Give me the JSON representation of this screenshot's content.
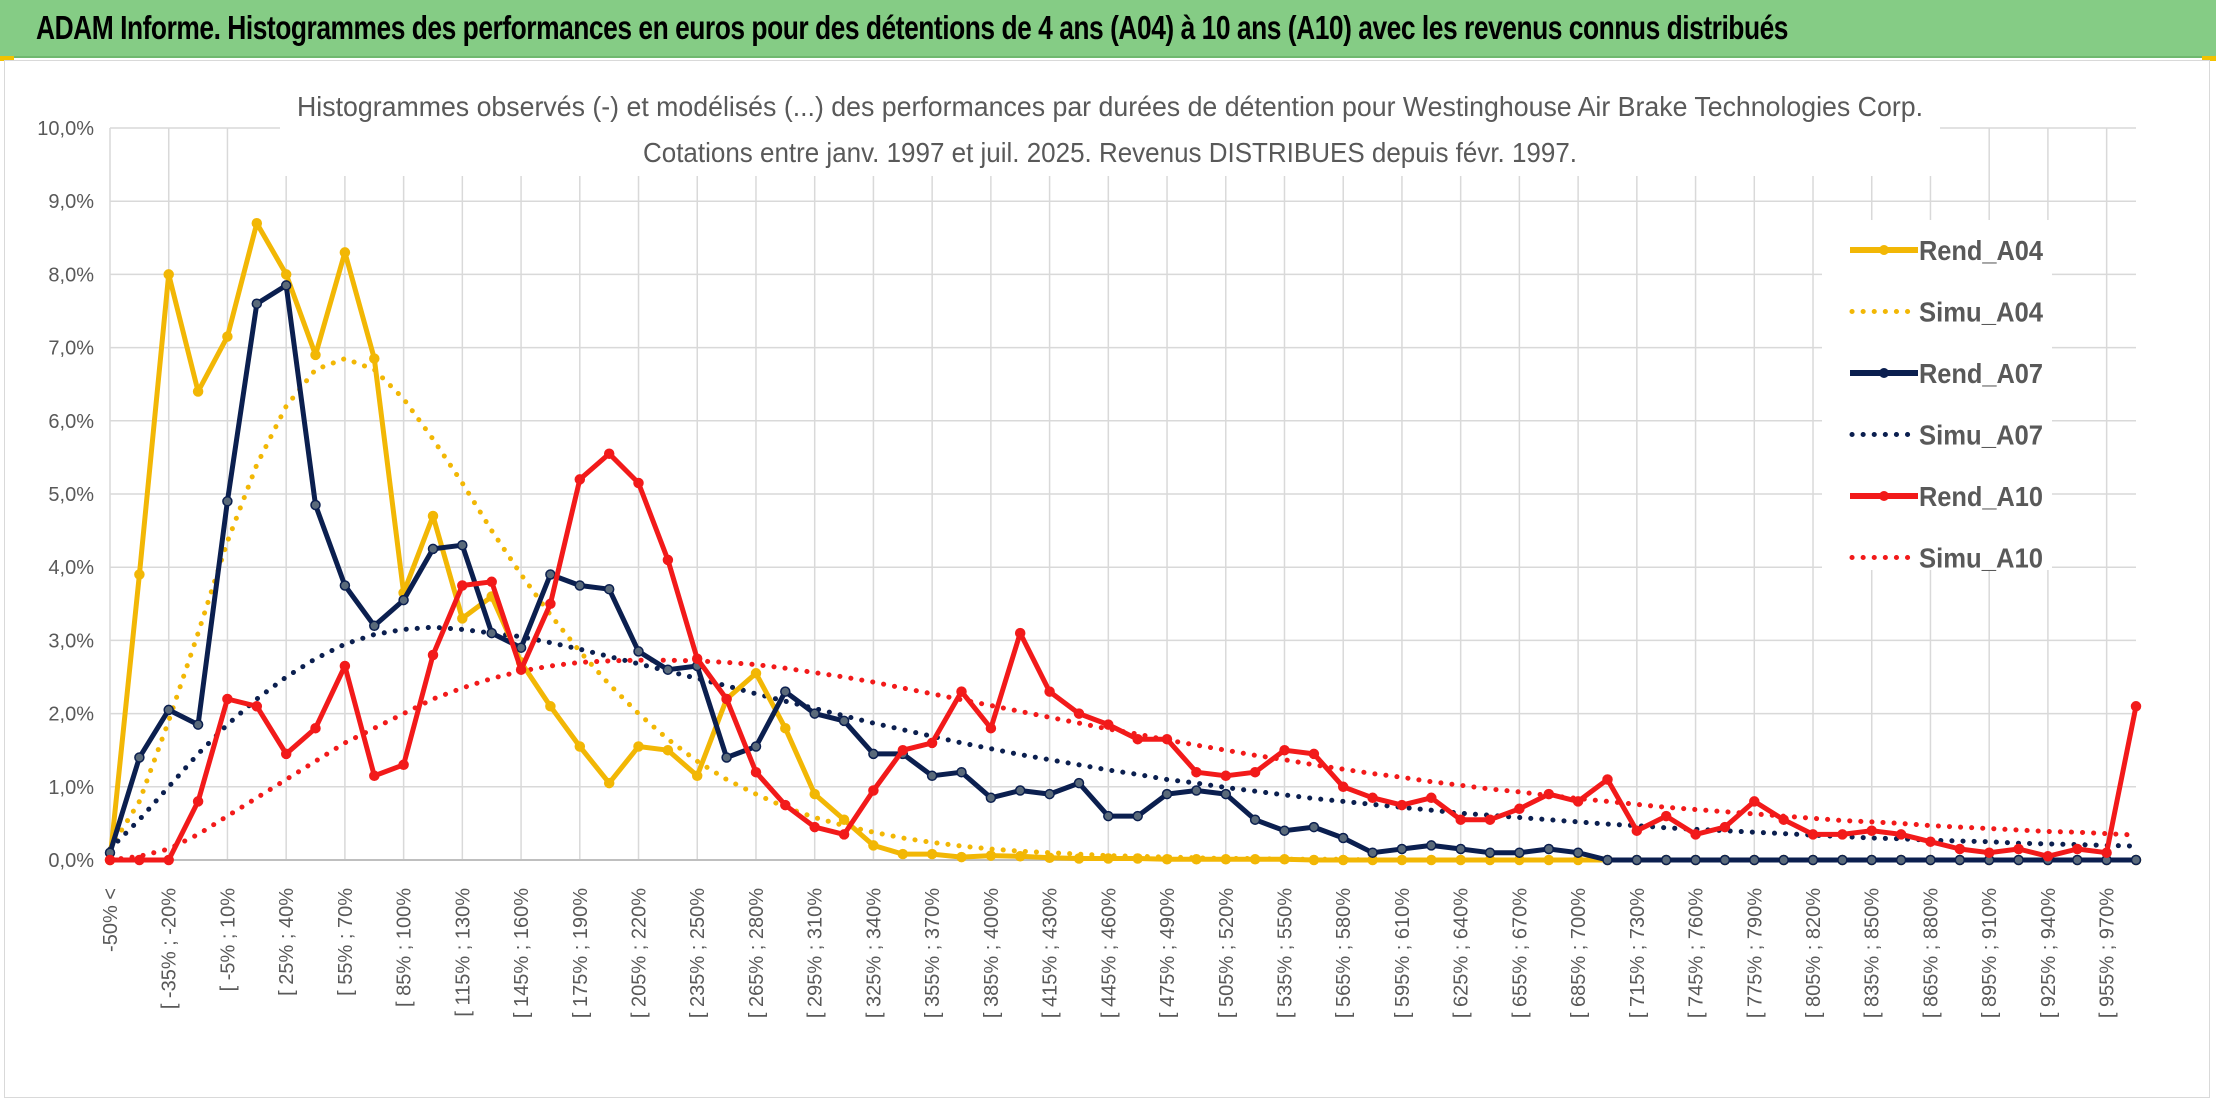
{
  "header": {
    "title": "ADAM Informe. Histogrammes des performances en euros pour des détentions de 4 ans (A04) à 10 ans (A10) avec les revenus connus distribués"
  },
  "colors": {
    "header_band": "#85cc85",
    "a04": "#f2b705",
    "a07": "#0b1f4f",
    "a10": "#f21a1a",
    "grid": "#d9d9d9",
    "text": "#595959"
  },
  "chart_data": {
    "type": "line",
    "title": "Histogrammes observés (-) et modélisés (...) des performances par durées de détention pour Westinghouse Air Brake Technologies Corp.",
    "subtitle": "Cotations entre janv. 1997 et juil. 2025. Revenus DISTRIBUES depuis févr. 1997.",
    "ylim": [
      0,
      10
    ],
    "y_tick_labels": [
      "0,0%",
      "1,0%",
      "2,0%",
      "3,0%",
      "4,0%",
      "5,0%",
      "6,0%",
      "7,0%",
      "8,0%",
      "9,0%",
      "10,0%"
    ],
    "x_tick_labels": [
      "-50% <",
      "[ -35% ; -20%",
      "[ -5% ; 10%",
      "[ 25% ; 40%",
      "[ 55% ; 70%",
      "[ 85% ; 100%",
      "[ 115% ; 130%",
      "[ 145% ; 160%",
      "[ 175% ; 190%",
      "[ 205% ; 220%",
      "[ 235% ; 250%",
      "[ 265% ; 280%",
      "[ 295% ; 310%",
      "[ 325% ; 340%",
      "[ 355% ; 370%",
      "[ 385% ; 400%",
      "[ 415% ; 430%",
      "[ 445% ; 460%",
      "[ 475% ; 490%",
      "[ 505% ; 520%",
      "[ 535% ; 550%",
      "[ 565% ; 580%",
      "[ 595% ; 610%",
      "[ 625% ; 640%",
      "[ 655% ; 670%",
      "[ 685% ; 700%",
      "[ 715% ; 730%",
      "[ 745% ; 760%",
      "[ 775% ; 790%",
      "[ 805% ; 820%",
      "[ 835% ; 850%",
      "[ 865% ; 880%",
      "[ 895% ; 910%",
      "[ 925% ; 940%",
      "[ 955% ; 970%"
    ],
    "grid": true,
    "legend_position": "right",
    "series": [
      {
        "name": "Rend_A04",
        "style": "solid",
        "color": "#f2b705",
        "values": [
          0.0,
          3.9,
          8.0,
          6.4,
          7.15,
          8.7,
          8.0,
          6.9,
          8.3,
          6.85,
          3.65,
          4.7,
          3.3,
          3.6,
          2.7,
          2.1,
          1.55,
          1.05,
          1.55,
          1.5,
          1.15,
          2.2,
          2.55,
          1.8,
          0.9,
          0.55,
          0.2,
          0.08,
          0.08,
          0.04,
          0.06,
          0.05,
          0.03,
          0.02,
          0.02,
          0.02,
          0.01,
          0.01,
          0.01,
          0.01,
          0.01,
          0.0,
          0.0,
          0.0,
          0.0,
          0.0,
          0.0,
          0.0,
          0.0,
          0.0,
          0.0,
          0.0,
          0.0,
          0.0,
          0.0,
          0.0,
          0.0,
          0.0,
          0.0,
          0.0,
          0.0,
          0.0,
          0.0,
          0.0,
          0.0,
          0.0,
          0.0,
          0.0,
          0.0,
          0.0
        ]
      },
      {
        "name": "Simu_A04",
        "style": "dotted",
        "color": "#f2b705",
        "values": [
          0.15,
          0.8,
          1.9,
          3.1,
          4.35,
          5.4,
          6.2,
          6.7,
          6.85,
          6.7,
          6.3,
          5.75,
          5.15,
          4.5,
          3.9,
          3.35,
          2.85,
          2.4,
          2.0,
          1.65,
          1.35,
          1.1,
          0.9,
          0.72,
          0.58,
          0.47,
          0.38,
          0.3,
          0.24,
          0.19,
          0.15,
          0.12,
          0.1,
          0.08,
          0.06,
          0.05,
          0.04,
          0.03,
          0.02,
          0.02,
          0.01,
          0.01,
          0.01,
          0.0,
          0.0,
          0.0,
          0.0,
          0.0,
          0.0,
          0.0,
          0.0,
          0.0,
          0.0,
          0.0,
          0.0,
          0.0,
          0.0,
          0.0,
          0.0,
          0.0,
          0.0,
          0.0,
          0.0,
          0.0,
          0.0,
          0.0,
          0.0,
          0.0,
          0.0,
          0.0
        ]
      },
      {
        "name": "Rend_A07",
        "style": "solid",
        "color": "#0b1f4f",
        "values": [
          0.1,
          1.4,
          2.05,
          1.85,
          4.9,
          7.6,
          7.85,
          4.85,
          3.75,
          3.2,
          3.55,
          4.25,
          4.3,
          3.1,
          2.9,
          3.9,
          3.75,
          3.7,
          2.85,
          2.6,
          2.65,
          1.4,
          1.55,
          2.3,
          2.0,
          1.9,
          1.45,
          1.45,
          1.15,
          1.2,
          0.85,
          0.95,
          0.9,
          1.05,
          0.6,
          0.6,
          0.9,
          0.95,
          0.9,
          0.55,
          0.4,
          0.45,
          0.3,
          0.1,
          0.15,
          0.2,
          0.15,
          0.1,
          0.1,
          0.15,
          0.1,
          0.0,
          0.0,
          0.0,
          0.0,
          0.0,
          0.0,
          0.0,
          0.0,
          0.0,
          0.0,
          0.0,
          0.0,
          0.0,
          0.0,
          0.0,
          0.0,
          0.0,
          0.0,
          0.0
        ]
      },
      {
        "name": "Simu_A07",
        "style": "dotted",
        "color": "#0b1f4f",
        "values": [
          0.15,
          0.55,
          1.0,
          1.45,
          1.85,
          2.2,
          2.5,
          2.75,
          2.95,
          3.08,
          3.15,
          3.18,
          3.15,
          3.1,
          3.05,
          2.97,
          2.88,
          2.78,
          2.68,
          2.58,
          2.48,
          2.38,
          2.27,
          2.17,
          2.07,
          1.97,
          1.87,
          1.78,
          1.69,
          1.6,
          1.52,
          1.44,
          1.37,
          1.3,
          1.23,
          1.17,
          1.1,
          1.05,
          0.99,
          0.94,
          0.89,
          0.84,
          0.8,
          0.76,
          0.72,
          0.68,
          0.64,
          0.61,
          0.58,
          0.55,
          0.52,
          0.49,
          0.47,
          0.44,
          0.42,
          0.4,
          0.38,
          0.36,
          0.34,
          0.32,
          0.3,
          0.29,
          0.27,
          0.26,
          0.25,
          0.23,
          0.22,
          0.21,
          0.2,
          0.19
        ]
      },
      {
        "name": "Rend_A10",
        "style": "solid",
        "color": "#f21a1a",
        "values": [
          0.0,
          0.0,
          0.0,
          0.8,
          2.2,
          2.1,
          1.45,
          1.8,
          2.65,
          1.15,
          1.3,
          2.8,
          3.75,
          3.8,
          2.6,
          3.5,
          5.2,
          5.55,
          5.15,
          4.1,
          2.75,
          2.2,
          1.2,
          0.75,
          0.45,
          0.35,
          0.95,
          1.5,
          1.6,
          2.3,
          1.8,
          3.1,
          2.3,
          2.0,
          1.85,
          1.65,
          1.65,
          1.2,
          1.15,
          1.2,
          1.5,
          1.45,
          1.0,
          0.85,
          0.75,
          0.85,
          0.55,
          0.55,
          0.7,
          0.9,
          0.8,
          1.1,
          0.4,
          0.6,
          0.35,
          0.45,
          0.8,
          0.55,
          0.35,
          0.35,
          0.4,
          0.35,
          0.25,
          0.15,
          0.1,
          0.15,
          0.05,
          0.15,
          0.1,
          2.1
        ]
      },
      {
        "name": "Simu_A10",
        "style": "dotted",
        "color": "#f21a1a",
        "values": [
          0.0,
          0.05,
          0.15,
          0.35,
          0.6,
          0.85,
          1.1,
          1.35,
          1.6,
          1.8,
          2.0,
          2.2,
          2.35,
          2.48,
          2.58,
          2.65,
          2.7,
          2.72,
          2.73,
          2.73,
          2.72,
          2.7,
          2.67,
          2.62,
          2.56,
          2.5,
          2.43,
          2.35,
          2.27,
          2.19,
          2.11,
          2.03,
          1.95,
          1.87,
          1.79,
          1.72,
          1.64,
          1.57,
          1.5,
          1.43,
          1.37,
          1.3,
          1.24,
          1.18,
          1.13,
          1.07,
          1.02,
          0.97,
          0.93,
          0.88,
          0.84,
          0.8,
          0.76,
          0.72,
          0.69,
          0.66,
          0.63,
          0.6,
          0.57,
          0.54,
          0.52,
          0.5,
          0.47,
          0.45,
          0.43,
          0.41,
          0.39,
          0.38,
          0.36,
          0.34
        ]
      }
    ]
  }
}
